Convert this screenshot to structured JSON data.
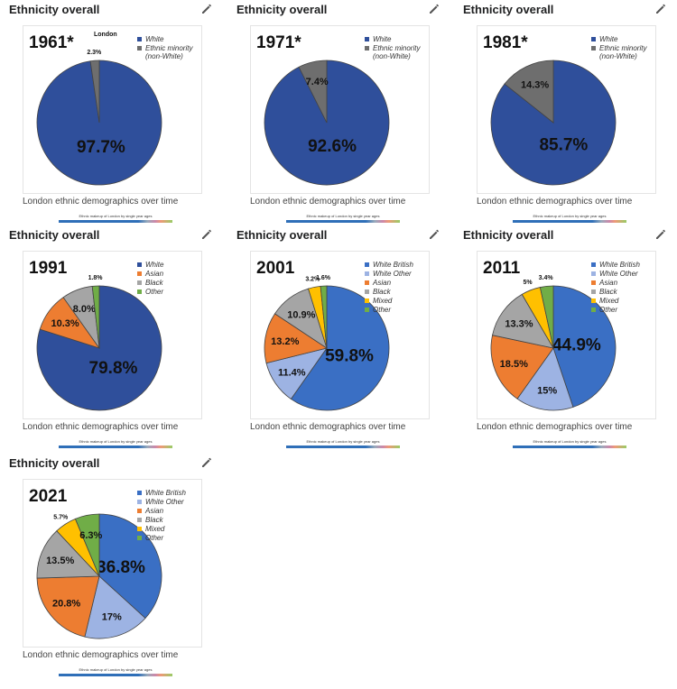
{
  "chart_data": [
    {
      "type": "pie",
      "panel_title": "Ethnicity overall",
      "title": "1961*",
      "subtitle": "London",
      "categories": [
        "White",
        "Ethnic minority (non-White)"
      ],
      "values": [
        97.7,
        2.3
      ],
      "value_labels": [
        "97.7%",
        "2.3%"
      ],
      "colors": [
        "#2f4f9b",
        "#6e6e6e"
      ],
      "caption": "London ethnic demographics over time",
      "strip_label": "Ethnic makeup of London by single year ages"
    },
    {
      "type": "pie",
      "panel_title": "Ethnicity overall",
      "title": "1971*",
      "categories": [
        "White",
        "Ethnic minority (non-White)"
      ],
      "values": [
        92.6,
        7.4
      ],
      "value_labels": [
        "92.6%",
        "7.4%"
      ],
      "colors": [
        "#2f4f9b",
        "#6e6e6e"
      ],
      "caption": "London ethnic demographics over time",
      "strip_label": "Ethnic makeup of London by single year ages"
    },
    {
      "type": "pie",
      "panel_title": "Ethnicity overall",
      "title": "1981*",
      "categories": [
        "White",
        "Ethnic minority (non-White)"
      ],
      "values": [
        85.7,
        14.3
      ],
      "value_labels": [
        "85.7%",
        "14.3%"
      ],
      "colors": [
        "#2f4f9b",
        "#6e6e6e"
      ],
      "caption": "London ethnic demographics over time",
      "strip_label": "Ethnic makeup of London by single year ages"
    },
    {
      "type": "pie",
      "panel_title": "Ethnicity overall",
      "title": "1991",
      "categories": [
        "White",
        "Asian",
        "Black",
        "Other"
      ],
      "values": [
        79.8,
        10.3,
        8.0,
        1.8
      ],
      "value_labels": [
        "79.8%",
        "10.3%",
        "8.0%",
        "1.8%"
      ],
      "colors": [
        "#2f4f9b",
        "#ed7d31",
        "#a5a5a5",
        "#70ad47"
      ],
      "caption": "London ethnic demographics over time",
      "strip_label": "Ethnic makeup of London by single year ages"
    },
    {
      "type": "pie",
      "panel_title": "Ethnicity overall",
      "title": "2001",
      "categories": [
        "White British",
        "White Other",
        "Asian",
        "Black",
        "Mixed",
        "Other"
      ],
      "values": [
        59.8,
        11.4,
        13.2,
        10.9,
        3.2,
        1.6
      ],
      "value_labels": [
        "59.8%",
        "11.4%",
        "13.2%",
        "10.9%",
        "3.2%",
        "1.6%"
      ],
      "colors": [
        "#3a6fc4",
        "#9db3e3",
        "#ed7d31",
        "#a5a5a5",
        "#ffc000",
        "#70ad47"
      ],
      "caption": "London ethnic demographics over time",
      "strip_label": "Ethnic makeup of London by single year ages"
    },
    {
      "type": "pie",
      "panel_title": "Ethnicity overall",
      "title": "2011",
      "categories": [
        "White British",
        "White Other",
        "Asian",
        "Black",
        "Mixed",
        "Other"
      ],
      "values": [
        44.9,
        15,
        18.5,
        13.3,
        5,
        3.4
      ],
      "value_labels": [
        "44.9%",
        "15%",
        "18.5%",
        "13.3%",
        "5%",
        "3.4%"
      ],
      "colors": [
        "#3a6fc4",
        "#9db3e3",
        "#ed7d31",
        "#a5a5a5",
        "#ffc000",
        "#70ad47"
      ],
      "caption": "London ethnic demographics over time",
      "strip_label": "Ethnic makeup of London by single year ages"
    },
    {
      "type": "pie",
      "panel_title": "Ethnicity overall",
      "title": "2021",
      "categories": [
        "White British",
        "White Other",
        "Asian",
        "Black",
        "Mixed",
        "Other"
      ],
      "values": [
        36.8,
        17,
        20.8,
        13.5,
        5.7,
        6.3
      ],
      "value_labels": [
        "36.8%",
        "17%",
        "20.8%",
        "13.5%",
        "5.7%",
        "6.3%"
      ],
      "colors": [
        "#3a6fc4",
        "#9db3e3",
        "#ed7d31",
        "#a5a5a5",
        "#ffc000",
        "#70ad47"
      ],
      "caption": "London ethnic demographics over time",
      "strip_label": "Ethnic makeup of London by single year ages"
    }
  ]
}
